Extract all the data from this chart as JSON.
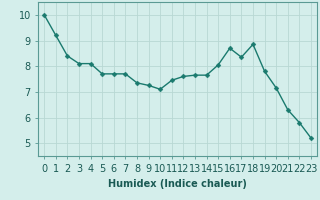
{
  "x": [
    0,
    1,
    2,
    3,
    4,
    5,
    6,
    7,
    8,
    9,
    10,
    11,
    12,
    13,
    14,
    15,
    16,
    17,
    18,
    19,
    20,
    21,
    22,
    23
  ],
  "y": [
    10.0,
    9.2,
    8.4,
    8.1,
    8.1,
    7.7,
    7.7,
    7.7,
    7.35,
    7.25,
    7.1,
    7.45,
    7.6,
    7.65,
    7.65,
    8.05,
    8.7,
    8.35,
    8.85,
    7.8,
    7.15,
    6.3,
    5.8,
    5.2
  ],
  "line_color": "#1a7a6e",
  "marker": "D",
  "marker_size": 2.5,
  "bg_color": "#d4eeeb",
  "grid_color": "#b8d8d4",
  "xlabel": "Humidex (Indice chaleur)",
  "xlim": [
    -0.5,
    23.5
  ],
  "ylim": [
    4.5,
    10.5
  ],
  "yticks": [
    5,
    6,
    7,
    8,
    9,
    10
  ],
  "xticks": [
    0,
    1,
    2,
    3,
    4,
    5,
    6,
    7,
    8,
    9,
    10,
    11,
    12,
    13,
    14,
    15,
    16,
    17,
    18,
    19,
    20,
    21,
    22,
    23
  ],
  "xlabel_fontsize": 7,
  "tick_fontsize": 7,
  "line_width": 1.0
}
